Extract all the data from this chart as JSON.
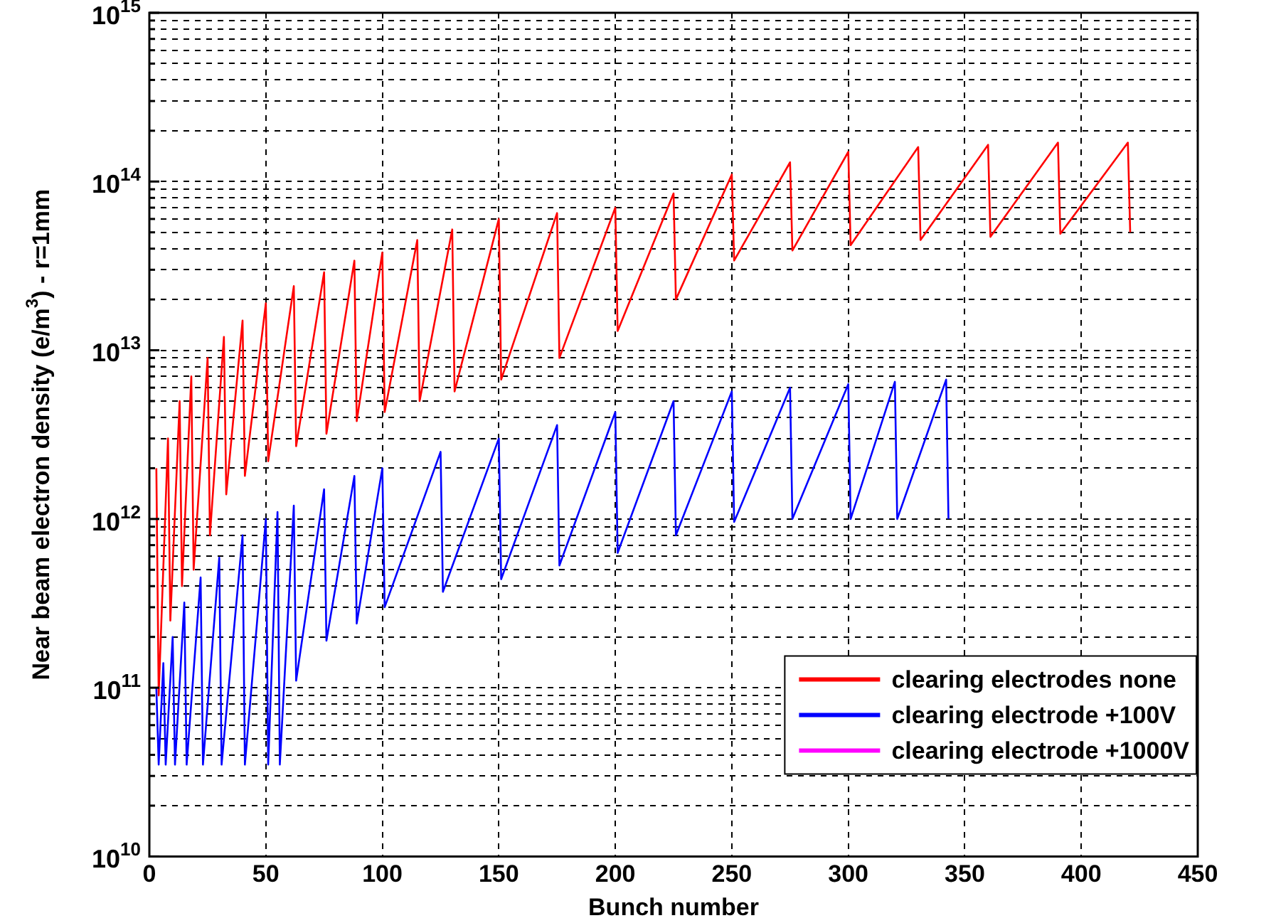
{
  "chart_data": {
    "type": "line",
    "xlabel": "Bunch number",
    "ylabel": "Near beam electron density (e/m$^{3}$) - r=1mm",
    "log": "y",
    "grid": true,
    "legend": "bottom right",
    "marker": "none",
    "line_style": "solid",
    "xlim": [
      0,
      450
    ],
    "xticks": [
      0,
      50,
      100,
      150,
      200,
      250,
      300,
      350,
      400,
      450
    ],
    "ylim": [
      10000000000.0,
      1000000000000000.0
    ],
    "yticks": [
      {
        "value": 10000000000.0,
        "label": "10$^{10}$"
      },
      {
        "value": 20000000000.0,
        "label": null
      },
      {
        "value": 30000000000.0,
        "label": null
      },
      {
        "value": 40000000000.0,
        "label": null
      },
      {
        "value": 50000000000.0,
        "label": null
      },
      {
        "value": 60000000000.0,
        "label": null
      },
      {
        "value": 70000000000.0,
        "label": null
      },
      {
        "value": 80000000000.0,
        "label": null
      },
      {
        "value": 90000000000.0,
        "label": null
      },
      {
        "value": 100000000000.0,
        "label": "10$^{11}$"
      },
      {
        "value": 200000000000.0,
        "label": null
      },
      {
        "value": 300000000000.0,
        "label": null
      },
      {
        "value": 400000000000.0,
        "label": null
      },
      {
        "value": 500000000000.0,
        "label": null
      },
      {
        "value": 600000000000.0,
        "label": null
      },
      {
        "value": 700000000000.0,
        "label": null
      },
      {
        "value": 800000000000.0,
        "label": null
      },
      {
        "value": 900000000000.0,
        "label": null
      },
      {
        "value": 1000000000000.0,
        "label": "10$^{12}$"
      },
      {
        "value": 2000000000000.0,
        "label": null
      },
      {
        "value": 3000000000000.0,
        "label": null
      },
      {
        "value": 4000000000000.0,
        "label": null
      },
      {
        "value": 5000000000000.0,
        "label": null
      },
      {
        "value": 6000000000000.0,
        "label": null
      },
      {
        "value": 7000000000000.0,
        "label": null
      },
      {
        "value": 8000000000000.0,
        "label": null
      },
      {
        "value": 9000000000000.0,
        "label": null
      },
      {
        "value": 10000000000000.0,
        "label": "10$^{13}$"
      },
      {
        "value": 20000000000000.0,
        "label": null
      },
      {
        "value": 30000000000000.0,
        "label": null
      },
      {
        "value": 40000000000000.0,
        "label": null
      },
      {
        "value": 50000000000000.0,
        "label": null
      },
      {
        "value": 60000000000000.0,
        "label": null
      },
      {
        "value": 70000000000000.0,
        "label": null
      },
      {
        "value": 80000000000000.0,
        "label": null
      },
      {
        "value": 90000000000000.0,
        "label": null
      },
      {
        "value": 100000000000000.0,
        "label": "10$^{14}$"
      },
      {
        "value": 200000000000000.0,
        "label": null
      },
      {
        "value": 300000000000000.0,
        "label": null
      },
      {
        "value": 400000000000000.0,
        "label": null
      },
      {
        "value": 500000000000000.0,
        "label": null
      },
      {
        "value": 600000000000000.0,
        "label": null
      },
      {
        "value": 700000000000000.0,
        "label": null
      },
      {
        "value": 800000000000000.0,
        "label": null
      },
      {
        "value": 900000000000000.0,
        "label": null
      },
      {
        "value": 1000000000000000.0,
        "label": "10$^{15}$"
      }
    ],
    "series": [
      {
        "name": "clearing electrodes none",
        "color": "#ff0000",
        "x": [
          3,
          4,
          8,
          9,
          13,
          14,
          18,
          19,
          25,
          26,
          32,
          33,
          40,
          41,
          50,
          51,
          62,
          63,
          75,
          76,
          88,
          89,
          100,
          101,
          115,
          116,
          130,
          131,
          150,
          151,
          175,
          176,
          200,
          201,
          225,
          226,
          250,
          251,
          275,
          276,
          300,
          301,
          330,
          331,
          360,
          361,
          390,
          391,
          420,
          421
        ],
        "values": [
          2000000000000.0,
          90000000000.0,
          3000000000000.0,
          250000000000.0,
          5000000000000.0,
          400000000000.0,
          7000000000000.0,
          500000000000.0,
          9000000000000.0,
          800000000000.0,
          12000000000000.0,
          1400000000000.0,
          15000000000000.0,
          1800000000000.0,
          19000000000000.0,
          2200000000000.0,
          24000000000000.0,
          2700000000000.0,
          29000000000000.0,
          3200000000000.0,
          34000000000000.0,
          3800000000000.0,
          38000000000000.0,
          4300000000000.0,
          45000000000000.0,
          5000000000000.0,
          52000000000000.0,
          5700000000000.0,
          60000000000000.0,
          6700000000000.0,
          65000000000000.0,
          9000000000000.0,
          70000000000000.0,
          13000000000000.0,
          85000000000000.0,
          20000000000000.0,
          110000000000000.0,
          34000000000000.0,
          130000000000000.0,
          39000000000000.0,
          150000000000000.0,
          42000000000000.0,
          160000000000000.0,
          45000000000000.0,
          165000000000000.0,
          47000000000000.0,
          170000000000000.0,
          49000000000000.0,
          170000000000000.0,
          50000000000000.0
        ]
      },
      {
        "name": "clearing electrode +100V",
        "color": "#0000ff",
        "x": [
          3,
          4,
          6,
          7,
          10,
          11,
          15,
          16,
          22,
          23,
          30,
          31,
          40,
          41,
          50,
          51,
          55,
          56,
          62,
          63,
          75,
          76,
          88,
          89,
          100,
          101,
          125,
          126,
          150,
          151,
          175,
          176,
          200,
          201,
          225,
          226,
          250,
          251,
          275,
          276,
          300,
          301,
          320,
          321,
          342,
          343
        ],
        "values": [
          100000000000.0,
          35000000000.0,
          140000000000.0,
          35000000000.0,
          200000000000.0,
          35000000000.0,
          320000000000.0,
          35000000000.0,
          450000000000.0,
          35000000000.0,
          590000000000.0,
          35000000000.0,
          800000000000.0,
          35000000000.0,
          1000000000000.0,
          35000000000.0,
          1100000000000.0,
          35000000000.0,
          1200000000000.0,
          110000000000.0,
          1500000000000.0,
          190000000000.0,
          1800000000000.0,
          240000000000.0,
          2000000000000.0,
          300000000000.0,
          2500000000000.0,
          370000000000.0,
          3000000000000.0,
          440000000000.0,
          3600000000000.0,
          530000000000.0,
          4300000000000.0,
          630000000000.0,
          5000000000000.0,
          800000000000.0,
          5700000000000.0,
          960000000000.0,
          6000000000000.0,
          1000000000000.0,
          6300000000000.0,
          1000000000000.0,
          6500000000000.0,
          1000000000000.0,
          6700000000000.0,
          1000000000000.0
        ]
      },
      {
        "name": "clearing electrode +1000V",
        "color": "#ff00ff"
      }
    ]
  }
}
